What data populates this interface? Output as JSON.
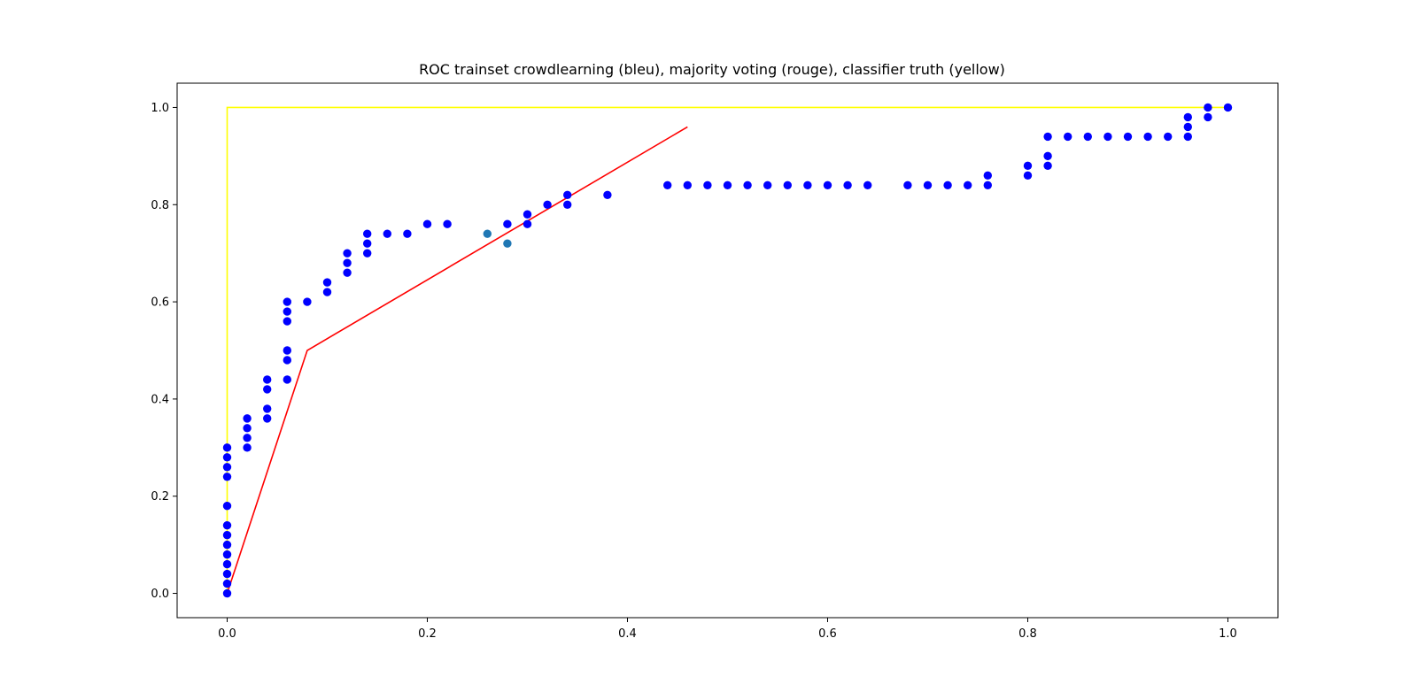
{
  "chart_data": {
    "type": "scatter",
    "title": "ROC trainset crowdlearning (bleu), majority voting (rouge), classifier truth (yellow)",
    "xlabel": "",
    "ylabel": "",
    "xlim": [
      -0.05,
      1.05
    ],
    "ylim": [
      -0.05,
      1.05
    ],
    "grid": false,
    "legend": "none",
    "x_ticks": [
      "0.0",
      "0.2",
      "0.4",
      "0.6",
      "0.8",
      "1.0"
    ],
    "y_ticks": [
      "0.0",
      "0.2",
      "0.4",
      "0.6",
      "0.8",
      "1.0"
    ],
    "series": [
      {
        "kind": "scatter",
        "color": "#0000ff",
        "points": [
          [
            0.0,
            0.0
          ],
          [
            0.0,
            0.02
          ],
          [
            0.0,
            0.04
          ],
          [
            0.0,
            0.06
          ],
          [
            0.0,
            0.08
          ],
          [
            0.0,
            0.1
          ],
          [
            0.0,
            0.12
          ],
          [
            0.0,
            0.14
          ],
          [
            0.0,
            0.18
          ],
          [
            0.0,
            0.24
          ],
          [
            0.0,
            0.26
          ],
          [
            0.0,
            0.28
          ],
          [
            0.0,
            0.3
          ],
          [
            0.02,
            0.3
          ],
          [
            0.02,
            0.32
          ],
          [
            0.02,
            0.34
          ],
          [
            0.02,
            0.36
          ],
          [
            0.04,
            0.36
          ],
          [
            0.04,
            0.38
          ],
          [
            0.04,
            0.42
          ],
          [
            0.04,
            0.44
          ],
          [
            0.06,
            0.44
          ],
          [
            0.06,
            0.48
          ],
          [
            0.06,
            0.5
          ],
          [
            0.06,
            0.56
          ],
          [
            0.06,
            0.58
          ],
          [
            0.06,
            0.6
          ],
          [
            0.08,
            0.6
          ],
          [
            0.1,
            0.62
          ],
          [
            0.1,
            0.64
          ],
          [
            0.12,
            0.66
          ],
          [
            0.12,
            0.68
          ],
          [
            0.12,
            0.7
          ],
          [
            0.14,
            0.7
          ],
          [
            0.14,
            0.72
          ],
          [
            0.14,
            0.74
          ],
          [
            0.16,
            0.74
          ],
          [
            0.18,
            0.74
          ],
          [
            0.2,
            0.76
          ],
          [
            0.22,
            0.76
          ],
          [
            0.28,
            0.76
          ],
          [
            0.3,
            0.76
          ],
          [
            0.3,
            0.78
          ],
          [
            0.32,
            0.8
          ],
          [
            0.34,
            0.8
          ],
          [
            0.34,
            0.82
          ],
          [
            0.38,
            0.82
          ],
          [
            0.44,
            0.84
          ],
          [
            0.46,
            0.84
          ],
          [
            0.48,
            0.84
          ],
          [
            0.5,
            0.84
          ],
          [
            0.52,
            0.84
          ],
          [
            0.54,
            0.84
          ],
          [
            0.56,
            0.84
          ],
          [
            0.58,
            0.84
          ],
          [
            0.6,
            0.84
          ],
          [
            0.62,
            0.84
          ],
          [
            0.64,
            0.84
          ],
          [
            0.68,
            0.84
          ],
          [
            0.7,
            0.84
          ],
          [
            0.72,
            0.84
          ],
          [
            0.74,
            0.84
          ],
          [
            0.76,
            0.84
          ],
          [
            0.76,
            0.86
          ],
          [
            0.8,
            0.86
          ],
          [
            0.8,
            0.88
          ],
          [
            0.82,
            0.88
          ],
          [
            0.82,
            0.9
          ],
          [
            0.82,
            0.94
          ],
          [
            0.84,
            0.94
          ],
          [
            0.86,
            0.94
          ],
          [
            0.88,
            0.94
          ],
          [
            0.9,
            0.94
          ],
          [
            0.92,
            0.94
          ],
          [
            0.94,
            0.94
          ],
          [
            0.96,
            0.94
          ],
          [
            0.96,
            0.96
          ],
          [
            0.96,
            0.98
          ],
          [
            0.98,
            0.98
          ],
          [
            0.98,
            1.0
          ],
          [
            1.0,
            1.0
          ]
        ]
      },
      {
        "kind": "scatter",
        "color": "#1f77b4",
        "points": [
          [
            0.26,
            0.74
          ],
          [
            0.28,
            0.72
          ]
        ]
      },
      {
        "kind": "line",
        "color": "#ff0000",
        "points": [
          [
            0.0,
            0.0
          ],
          [
            0.08,
            0.5
          ],
          [
            0.46,
            0.96
          ]
        ]
      },
      {
        "kind": "line",
        "color": "#ffff00",
        "points": [
          [
            0.0,
            0.0
          ],
          [
            0.0,
            1.0
          ],
          [
            1.0,
            1.0
          ]
        ]
      }
    ]
  }
}
